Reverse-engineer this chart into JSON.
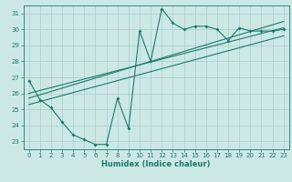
{
  "xlabel": "Humidex (Indice chaleur)",
  "ylabel": "",
  "background_color": "#cce8e4",
  "grid_color": "#aaccca",
  "line_color": "#1a7a6e",
  "xlim": [
    -0.5,
    23.5
  ],
  "ylim": [
    22.5,
    31.5
  ],
  "yticks": [
    23,
    24,
    25,
    26,
    27,
    28,
    29,
    30,
    31
  ],
  "xticks": [
    0,
    1,
    2,
    3,
    4,
    5,
    6,
    7,
    8,
    9,
    10,
    11,
    12,
    13,
    14,
    15,
    16,
    17,
    18,
    19,
    20,
    21,
    22,
    23
  ],
  "main_line": {
    "x": [
      0,
      1,
      2,
      3,
      4,
      5,
      6,
      7,
      8,
      9,
      10,
      11,
      12,
      13,
      14,
      15,
      16,
      17,
      18,
      19,
      20,
      21,
      22,
      23
    ],
    "y": [
      26.8,
      25.6,
      25.1,
      24.2,
      23.4,
      23.1,
      22.8,
      22.8,
      25.7,
      23.8,
      29.9,
      28.0,
      31.3,
      30.4,
      30.0,
      30.2,
      30.2,
      30.0,
      29.3,
      30.1,
      29.9,
      29.9,
      29.9,
      30.0
    ]
  },
  "regression_lines": [
    {
      "x": [
        0,
        23
      ],
      "y": [
        26.0,
        30.1
      ]
    },
    {
      "x": [
        0,
        23
      ],
      "y": [
        25.7,
        30.5
      ]
    },
    {
      "x": [
        0,
        23
      ],
      "y": [
        25.3,
        29.6
      ]
    }
  ],
  "tick_fontsize": 5,
  "xlabel_fontsize": 6
}
